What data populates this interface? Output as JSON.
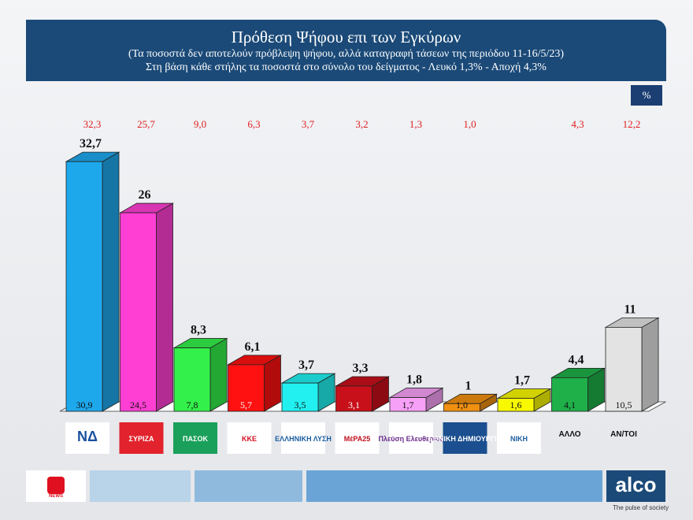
{
  "header": {
    "title": "Πρόθεση Ψήφου επι των Εγκύρων",
    "subtitle1": "(Τα ποσοστά δεν αποτελούν πρόβλεψη ψήφου, αλλά καταγραφή τάσεων της περιόδου  11-16/5/23)",
    "subtitle2": "Στη βάση κάθε στήλης τα ποσοστά στο σύνολο του δείγματος - Λευκό 1,3% - Αποχή 4,3%"
  },
  "unit_badge": "%",
  "chart_data": {
    "type": "bar",
    "categories": [
      "ΝΔ",
      "ΣΥΡΙΖΑ",
      "ΠΑΣΟΚ",
      "ΚΚΕ",
      "ΕΛΛΗΝΙΚΗ ΛΥΣΗ",
      "ΜέΡΑ25",
      "Πλεύση Ελευθερίας",
      "ΕΘΝΙΚΗ ΔΗΜΙΟΥΡΓΙΑ",
      "ΝΙΚΗ",
      "ΑΛΛΟ",
      "ΑΝ/ΤΟΙ"
    ],
    "series": [
      {
        "values": [
          "32,7",
          "26",
          "8,3",
          "6,1",
          "3,7",
          "3,3",
          "1,8",
          "1",
          "1,7",
          "4,4",
          "11"
        ]
      },
      {
        "values": [
          "30,9",
          "24,5",
          "7,8",
          "5,7",
          "3,5",
          "3,1",
          "1,7",
          "1,0",
          "1,6",
          "4,1",
          "10,5"
        ]
      },
      {
        "values": [
          "32,3",
          "25,7",
          "9,0",
          "6,3",
          "3,7",
          "3,2",
          "1,3",
          "1,0",
          "",
          "4,3",
          "12,2"
        ]
      }
    ],
    "colors": [
      "#1ea8ec",
      "#ff3fd3",
      "#33f04a",
      "#ff1111",
      "#22f0f0",
      "#c8101a",
      "#f7a0f7",
      "#f09010",
      "#f8f800",
      "#1fb04a",
      "#e3e3e3"
    ],
    "ylim": [
      0,
      34
    ]
  },
  "footer": {
    "brand": "alco",
    "tagline": "The pulse of society",
    "news_label": "NEWS"
  }
}
